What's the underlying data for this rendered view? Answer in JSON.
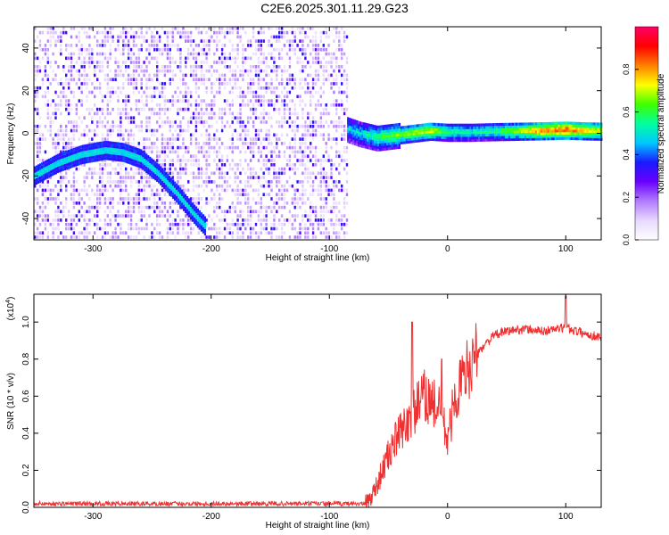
{
  "title": "C2E6.2025.301.11.29.G23",
  "chart_data": [
    {
      "type": "heatmap",
      "xlabel": "Height of straight line (km)",
      "ylabel": "Frequency (Hz)",
      "xlim": [
        -350,
        130
      ],
      "ylim": [
        -50,
        50
      ],
      "x_ticks": [
        -300,
        -200,
        -100,
        0,
        100
      ],
      "y_ticks": [
        -40,
        -20,
        0,
        20,
        40
      ],
      "colorbar": {
        "label": "Normalized spectral amplitude",
        "range": [
          0.0,
          1.0
        ],
        "ticks": [
          "0.0",
          "0.2",
          "0.4",
          "0.6",
          "0.8"
        ],
        "tick_values": [
          0.0,
          0.2,
          0.4,
          0.6,
          0.8
        ],
        "colors": [
          "#ffffff",
          "#e8d8ff",
          "#b07bff",
          "#6a00ff",
          "#1a1aff",
          "#00c8ff",
          "#00ffa0",
          "#40ff00",
          "#ffff00",
          "#ff8000",
          "#ff0000",
          "#ff0066"
        ]
      },
      "noise_region_x": [
        -350,
        -85
      ],
      "trace_wave": {
        "x": [
          -350,
          -330,
          -310,
          -290,
          -275,
          -260,
          -245,
          -230,
          -215,
          -205
        ],
        "y": [
          -20,
          -14,
          -10,
          -8,
          -9,
          -12,
          -19,
          -28,
          -38,
          -44
        ]
      },
      "trace_band": {
        "x": [
          -85,
          -75,
          -60,
          -45,
          -30,
          -15,
          0,
          20,
          40,
          60,
          80,
          100,
          115,
          130
        ],
        "y": [
          2,
          0,
          -2,
          -1,
          0,
          1,
          0.5,
          0.5,
          0.8,
          1,
          1.2,
          1.5,
          1.2,
          1
        ],
        "amplitude": [
          0.5,
          0.5,
          0.6,
          0.65,
          0.7,
          0.75,
          0.6,
          0.55,
          0.6,
          0.7,
          0.85,
          0.9,
          0.8,
          0.75
        ]
      }
    },
    {
      "type": "line",
      "xlabel": "Height of straight line (km)",
      "ylabel": "SNR (10 * v/v)",
      "y_multiplier": "(x10",
      "y_multiplier_exp": "4",
      "xlim": [
        -350,
        130
      ],
      "ylim": [
        0,
        1.15
      ],
      "x_ticks": [
        -300,
        -200,
        -100,
        0,
        100
      ],
      "y_ticks": [
        0.0,
        0.2,
        0.4,
        0.6,
        0.8,
        1.0
      ],
      "y_tick_labels": [
        "0.0",
        "0.2",
        "0.4",
        "0.6",
        "0.8",
        "1.0"
      ],
      "color": "#f03030",
      "series": [
        {
          "x": [
            -350,
            -300,
            -250,
            -200,
            -150,
            -110,
            -70,
            -65,
            -60,
            -55,
            -50,
            -45,
            -40,
            -35,
            -30,
            -25,
            -20,
            -15,
            -10,
            -5,
            0,
            5,
            10,
            15,
            20,
            25,
            30,
            35,
            40,
            50,
            60,
            70,
            80,
            90,
            100,
            110,
            120,
            130
          ],
          "y": [
            0.02,
            0.02,
            0.02,
            0.02,
            0.02,
            0.02,
            0.02,
            0.05,
            0.12,
            0.2,
            0.28,
            0.35,
            0.4,
            0.45,
            0.5,
            0.55,
            0.6,
            0.58,
            0.55,
            0.5,
            0.35,
            0.55,
            0.65,
            0.72,
            0.78,
            0.82,
            0.87,
            0.9,
            0.93,
            0.95,
            0.96,
            0.96,
            0.95,
            0.96,
            0.97,
            0.95,
            0.93,
            0.92
          ]
        }
      ],
      "spikes": [
        {
          "x": -30,
          "y": 1.0
        },
        {
          "x": -5,
          "y": 0.8
        },
        {
          "x": 100,
          "y": 1.14
        }
      ]
    }
  ]
}
